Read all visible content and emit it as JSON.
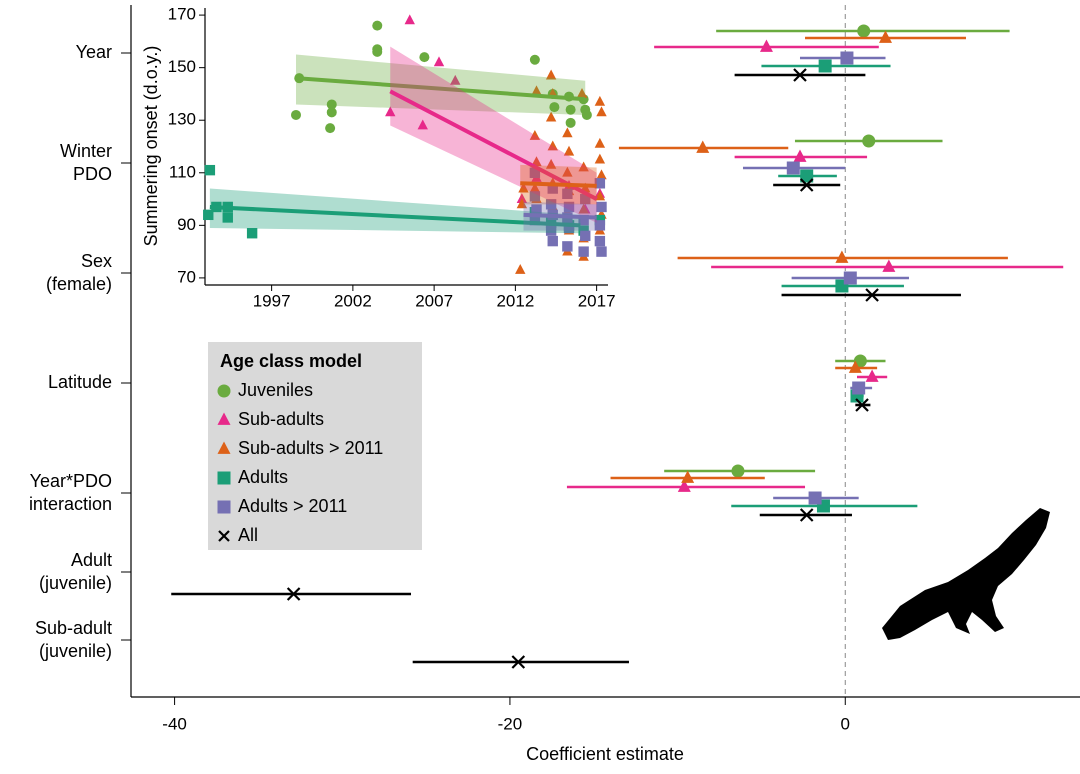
{
  "chart_data": [
    {
      "type": "forest",
      "categories": [
        "Year",
        "Winter PDO",
        "Sex (female)",
        "Latitude",
        "Year*PDO interaction",
        "Adult (juvenile)",
        "Sub-adult (juvenile)"
      ],
      "x_label": "Coefficient estimate",
      "xlim": [
        -42.6,
        14
      ],
      "xticks": [
        -40,
        -20,
        0
      ],
      "reference_line": 0,
      "legend_title": "Age class model",
      "legend_position": "middle-left",
      "series": [
        {
          "name": "Juveniles",
          "color": "#6aab3f",
          "marker": "circle",
          "values": [
            1.1,
            1.4,
            null,
            0.9,
            -6.4,
            null,
            null
          ],
          "lower": [
            -7.7,
            -3.0,
            null,
            -0.6,
            -10.8,
            null,
            null
          ],
          "upper": [
            9.8,
            5.8,
            null,
            2.4,
            -1.8,
            null,
            null
          ]
        },
        {
          "name": "Sub-adults",
          "color": "#e7298a",
          "marker": "triangle",
          "values": [
            -4.7,
            -2.7,
            2.6,
            1.6,
            -9.6,
            null,
            null
          ],
          "lower": [
            -11.4,
            -6.6,
            -8.0,
            0.7,
            -16.6,
            null,
            null
          ],
          "upper": [
            2.0,
            1.3,
            13.0,
            2.5,
            -2.4,
            null,
            null
          ]
        },
        {
          "name": "Sub-adults > 2011",
          "color": "#dd6118",
          "marker": "triangle",
          "values": [
            2.4,
            -8.5,
            -0.2,
            0.6,
            -9.4,
            null,
            null
          ],
          "lower": [
            -2.4,
            -13.5,
            -10.0,
            -0.6,
            -14.0,
            null,
            null
          ],
          "upper": [
            7.2,
            -3.4,
            9.7,
            1.9,
            -4.8,
            null,
            null
          ]
        },
        {
          "name": "Adults",
          "color": "#1b9e77",
          "marker": "square",
          "values": [
            -1.2,
            -2.3,
            -0.2,
            0.7,
            -1.3,
            null,
            null
          ],
          "lower": [
            -5.0,
            -4.0,
            -3.8,
            0.4,
            -6.8,
            null,
            null
          ],
          "upper": [
            2.7,
            -0.5,
            3.5,
            1.1,
            4.3,
            null,
            null
          ]
        },
        {
          "name": "Adults > 2011",
          "color": "#7570b3",
          "marker": "square",
          "values": [
            0.1,
            -3.1,
            0.3,
            0.8,
            -1.8,
            null,
            null
          ],
          "lower": [
            -2.7,
            -6.1,
            -3.2,
            0.3,
            -4.3,
            null,
            null
          ],
          "upper": [
            2.4,
            0.0,
            3.8,
            1.6,
            0.8,
            null,
            null
          ]
        },
        {
          "name": "All",
          "color": "#000000",
          "marker": "x",
          "values": [
            -2.7,
            -2.3,
            1.6,
            1.0,
            -2.3,
            -32.9,
            -19.5
          ],
          "lower": [
            -6.6,
            -4.3,
            -3.8,
            0.6,
            -5.1,
            -40.2,
            -25.8
          ],
          "upper": [
            1.2,
            -0.3,
            6.9,
            1.5,
            0.4,
            -25.9,
            -12.9
          ]
        }
      ]
    },
    {
      "type": "scatter",
      "y_label": "Summering onset (d.o.y.)",
      "xlim": [
        1992.9,
        2017.7
      ],
      "xticks": [
        1997,
        2002,
        2007,
        2012,
        2017
      ],
      "ylim": [
        67.3,
        172.7
      ],
      "yticks": [
        70,
        90,
        110,
        130,
        150,
        170
      ],
      "series": [
        {
          "color": "#6aab3f",
          "marker": "circle",
          "x": [
            1998.7,
            1998.5,
            2000.7,
            2000.7,
            2000.6,
            2003.5,
            2003.5,
            2003.5,
            2006.4,
            2013.2,
            2014.3,
            2014.4,
            2015.3,
            2015.4,
            2015.4,
            2016.2,
            2016.3,
            2016.4
          ],
          "values": [
            146,
            132,
            136,
            133,
            127,
            166,
            157,
            156,
            154,
            153,
            140,
            135,
            139,
            134,
            129,
            138,
            134,
            132
          ],
          "fit": {
            "x": [
              1998.5,
              2016.3
            ],
            "y": [
              146,
              138
            ],
            "lower": [
              136,
              132
            ],
            "upper": [
              155,
              145
            ]
          }
        },
        {
          "color": "#e7298a",
          "marker": "triangle",
          "x": [
            2004.3,
            2005.5,
            2006.3,
            2007.3,
            2008.3,
            2012.4,
            2013.3,
            2014.3,
            2015.3,
            2016.3,
            2017.2
          ],
          "values": [
            133,
            168,
            128,
            152,
            145,
            100,
            108,
            104,
            105,
            96,
            102
          ],
          "fit": {
            "x": [
              2004.3,
              2017.0
            ],
            "y": [
              141,
              100
            ],
            "lower": [
              128,
              91
            ],
            "upper": [
              158,
              110
            ]
          }
        },
        {
          "color": "#dd6118",
          "marker": "triangle",
          "x": [
            2012.3,
            2012.4,
            2012.5,
            2013.2,
            2013.3,
            2013.3,
            2013.2,
            2013.3,
            2014.2,
            2014.3,
            2014.2,
            2014.3,
            2014.2,
            2014.3,
            2014.3,
            2014.2,
            2015.2,
            2015.3,
            2015.2,
            2015.3,
            2015.2,
            2015.3,
            2015.2,
            2016.1,
            2016.2,
            2016.3,
            2016.2,
            2016.2,
            2016.2,
            2017.2,
            2017.3,
            2017.2,
            2017.2,
            2017.3,
            2017.2,
            2017.3,
            2017.2
          ],
          "values": [
            73,
            98,
            104,
            124,
            141,
            114,
            104,
            100,
            147,
            140,
            131,
            120,
            113,
            106,
            97,
            90,
            125,
            118,
            110,
            103,
            95,
            88,
            80,
            140,
            112,
            104,
            96,
            85,
            78,
            137,
            133,
            121,
            115,
            109,
            101,
            94,
            88
          ],
          "fit": {
            "x": [
              2012.3,
              2017.0
            ],
            "y": [
              106,
              105
            ],
            "lower": [
              98,
              98
            ],
            "upper": [
              113,
              112
            ]
          }
        },
        {
          "color": "#1b9e77",
          "marker": "square",
          "x": [
            1993.2,
            1993.1,
            1993.6,
            1994.3,
            1994.3,
            1995.8,
            2013.2,
            2014.2,
            2015.3,
            2016.2,
            2017.2
          ],
          "values": [
            111,
            94,
            97,
            97,
            93,
            87,
            95,
            91,
            90,
            88,
            92
          ],
          "fit": {
            "x": [
              1993.2,
              2016.0
            ],
            "y": [
              97,
              90
            ],
            "lower": [
              89,
              87
            ],
            "upper": [
              104,
              94
            ]
          }
        },
        {
          "color": "#7570b3",
          "marker": "square",
          "x": [
            2013.2,
            2013.2,
            2013.3,
            2013.2,
            2014.3,
            2014.2,
            2014.3,
            2014.2,
            2014.3,
            2015.2,
            2015.3,
            2015.2,
            2015.3,
            2015.2,
            2016.3,
            2016.2,
            2016.3,
            2016.2,
            2017.2,
            2017.3,
            2017.2,
            2017.2,
            2017.3
          ],
          "values": [
            110,
            101,
            96,
            92,
            104,
            98,
            94,
            88,
            84,
            102,
            97,
            93,
            89,
            82,
            100,
            92,
            86,
            80,
            106,
            97,
            90,
            84,
            80
          ],
          "fit": {
            "x": [
              2012.5,
              2017.0
            ],
            "y": [
              94,
              93
            ],
            "lower": [
              88,
              88
            ],
            "upper": [
              99,
              98
            ]
          }
        }
      ]
    }
  ]
}
